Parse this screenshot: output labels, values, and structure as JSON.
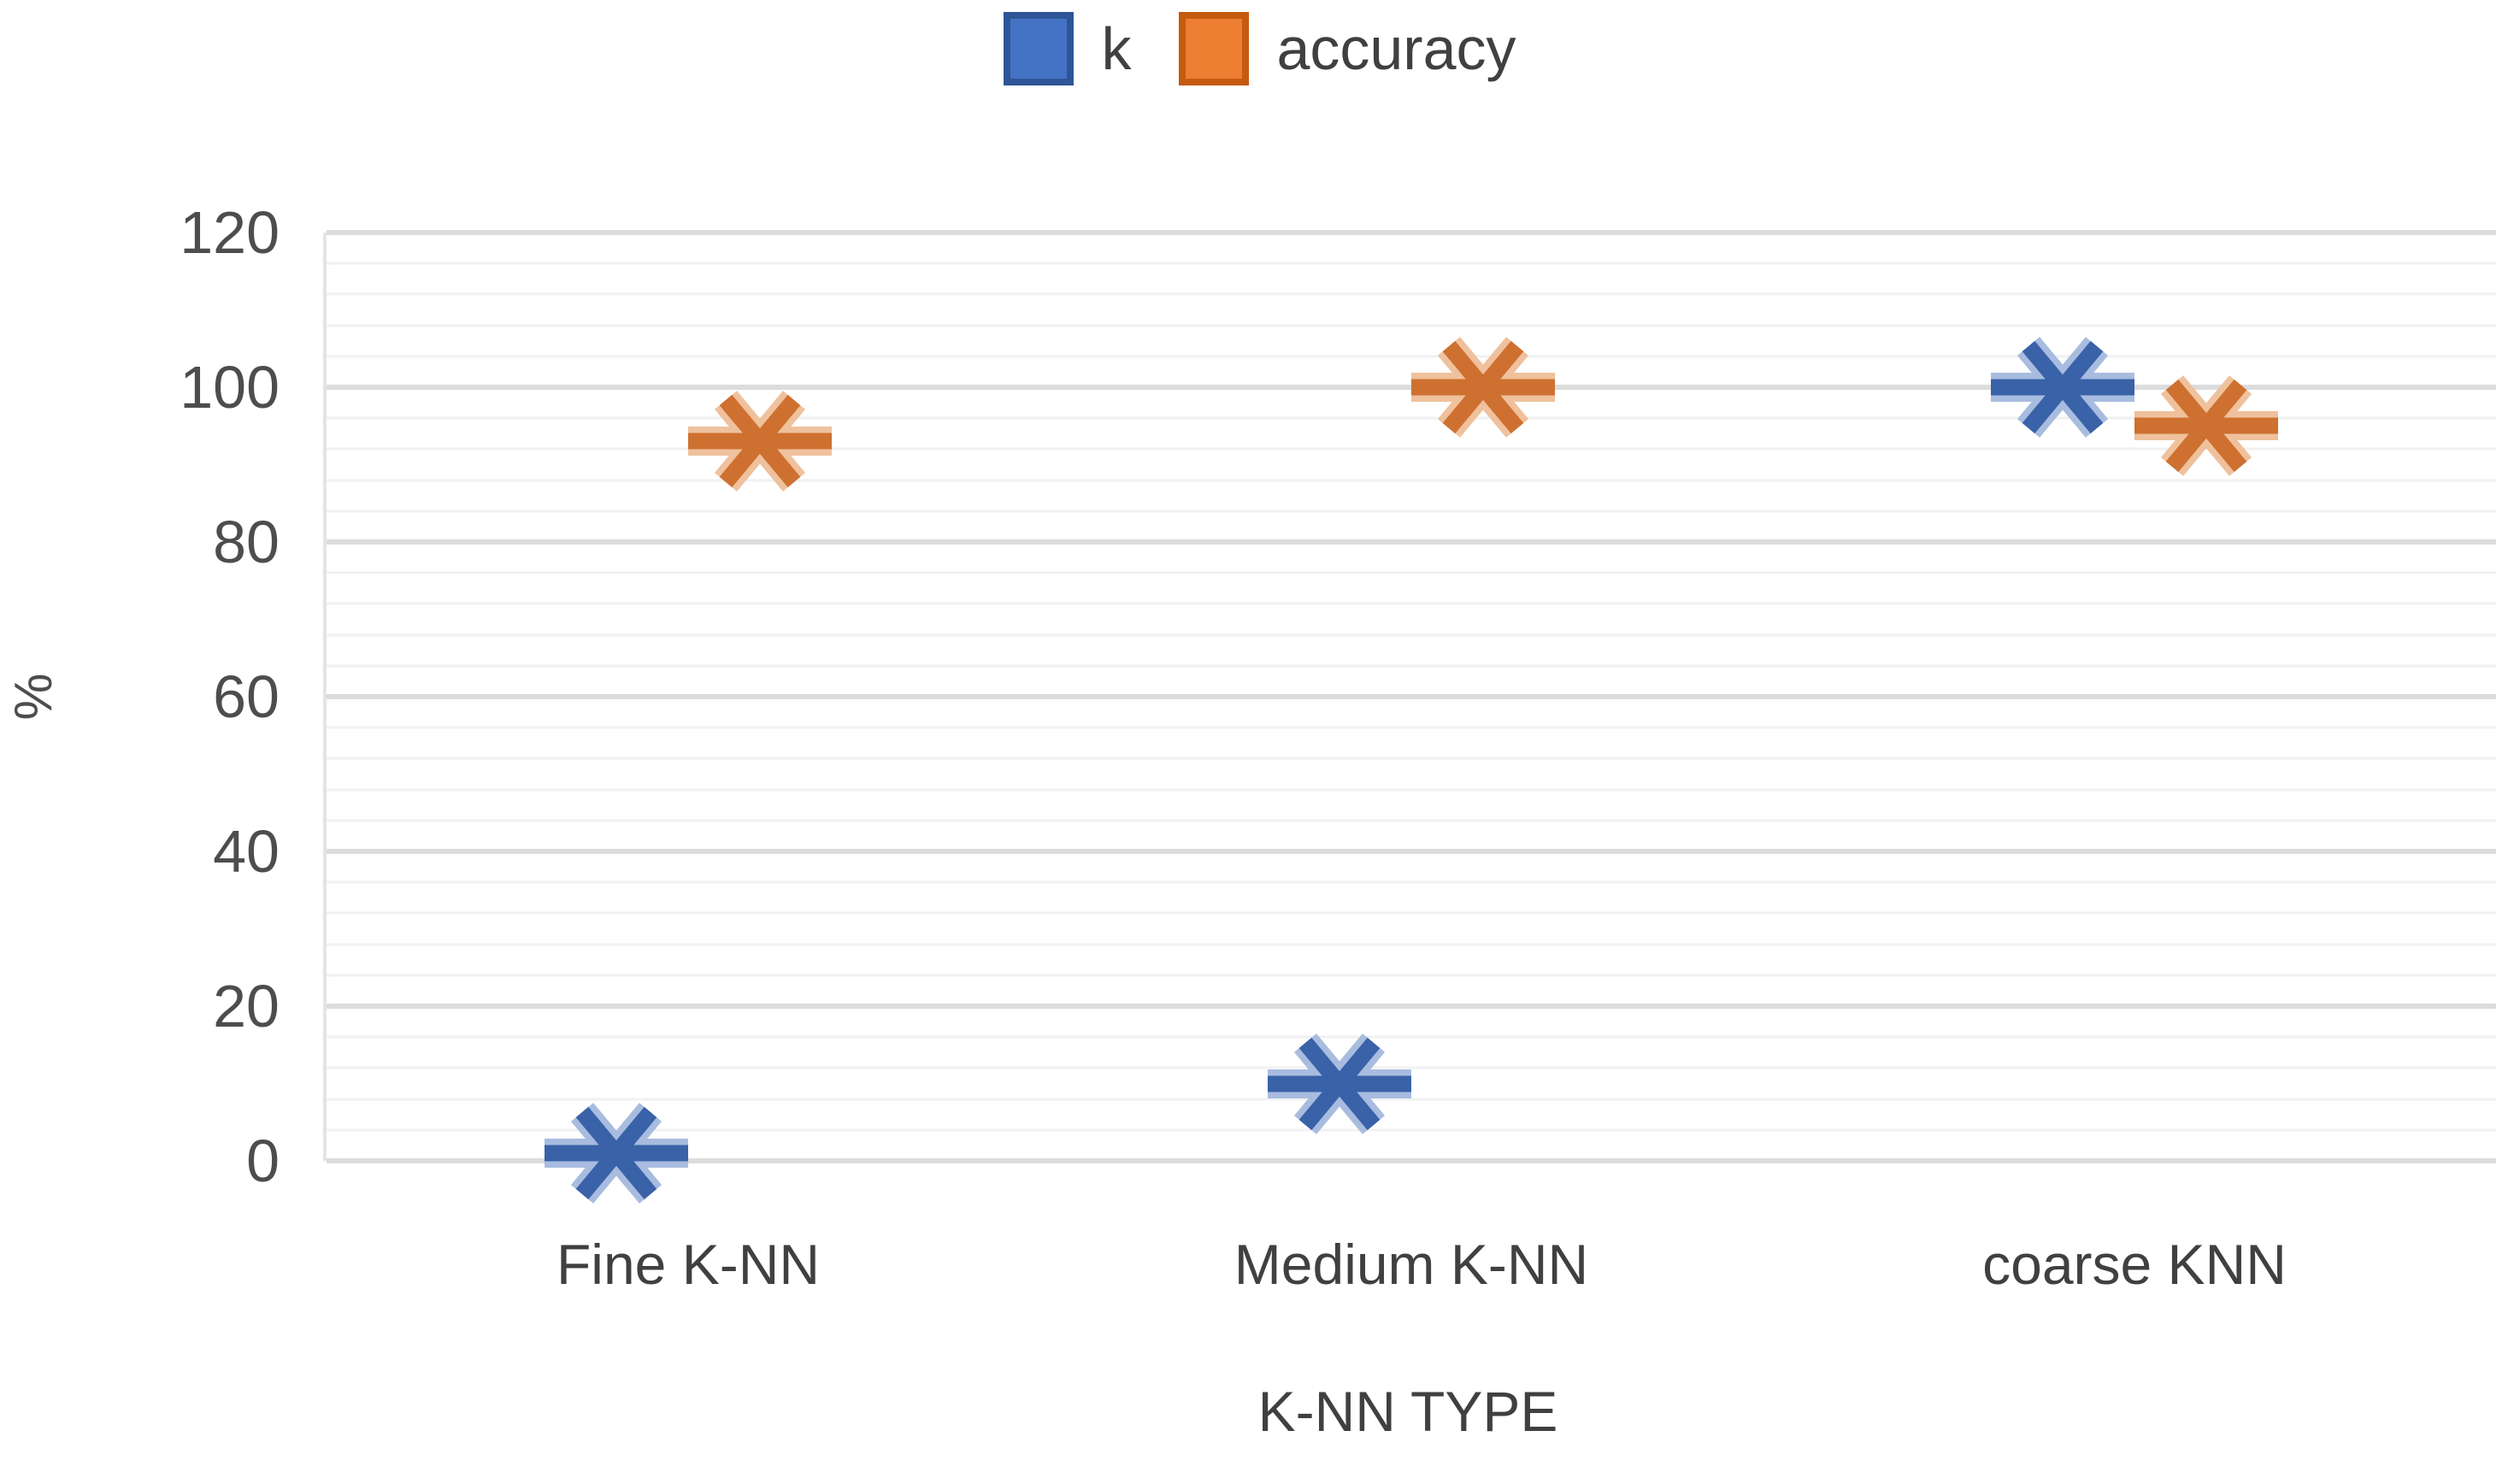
{
  "chart_data": {
    "type": "scatter",
    "categories": [
      "Fine K-NN",
      "Medium K-NN",
      "coarse KNN"
    ],
    "series": [
      {
        "name": "k",
        "values": [
          1,
          10,
          100
        ],
        "legend_color": "#4472C4",
        "legend_border": "#2E5597",
        "marker_color": "#3A62A8",
        "marker_halo": "#A8BCDF",
        "marker_style": "x-dash"
      },
      {
        "name": "accuracy",
        "values": [
          93,
          100,
          95
        ],
        "legend_color": "#ED7D31",
        "legend_border": "#C55A11",
        "marker_color": "#CE7030",
        "marker_halo": "#EFC19C",
        "marker_style": "x-dash"
      }
    ],
    "title": "",
    "xlabel": "K-NN TYPE",
    "ylabel": "%",
    "ylim": [
      0,
      120
    ],
    "y_major_ticks": [
      0,
      20,
      40,
      60,
      80,
      100,
      120
    ],
    "y_minor_step": 4,
    "grid": "horizontal",
    "legend_position": "top-center"
  }
}
